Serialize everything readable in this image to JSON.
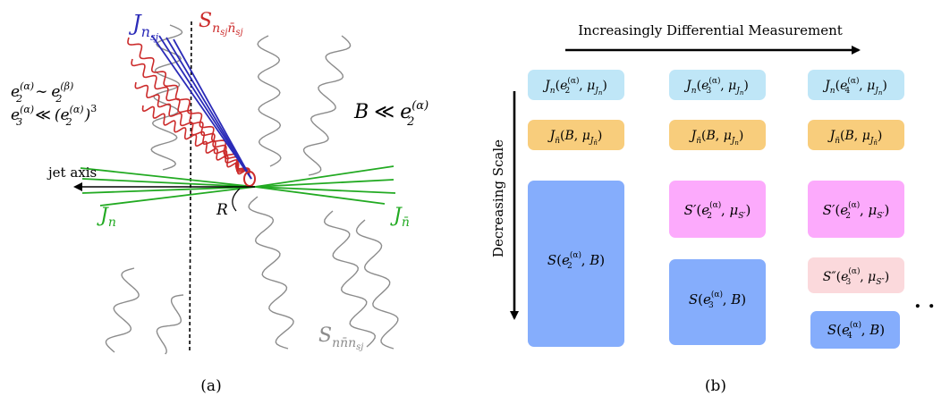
{
  "panel_a": {
    "caption": "(a)",
    "jet_axis_label": "jet axis",
    "collinear_subjet_label": {
      "base": "J",
      "sub": "n",
      "subsub": "sj"
    },
    "soft_collinear_label": {
      "base": "S",
      "sub": "n",
      "subsub": "sj",
      "sub2": "n̄",
      "subsub2": "sj"
    },
    "soft_global_label": {
      "base": "S",
      "sub": "nn̄n",
      "subsub": "sj"
    },
    "jet_n_label": {
      "base": "J",
      "sub": "n"
    },
    "jet_nbar_label": {
      "base": "J",
      "sub": "n̄"
    },
    "radius_label": "R",
    "relation_1": {
      "lhs": "e",
      "lhs_sub": "2",
      "lhs_sup": "(α)",
      "op": "∼",
      "rhs": "e",
      "rhs_sub": "2",
      "rhs_sup": "(β)"
    },
    "relation_2": {
      "lhs": "e",
      "lhs_sub": "3",
      "lhs_sup": "(α)",
      "op": "≪",
      "rhs": "(e",
      "rhs_sub": "2",
      "rhs_sup": "(α)",
      "tail": ")",
      "power": "3"
    },
    "relation_3": {
      "lhs": "B",
      "op": "≪",
      "rhs": "e",
      "rhs_sub": "2",
      "rhs_sup": "(α)"
    },
    "colors": {
      "collinear": "#2b2bb8",
      "soft_collinear": "#cc2b2b",
      "soft": "#8c8c8c",
      "jet": "#22aa22"
    }
  },
  "panel_b": {
    "caption": "(b)",
    "horizontal_axis_label": "Increasingly Differential Measurement",
    "vertical_axis_label": "Decreasing Scale",
    "ellipsis": ". .",
    "colors": {
      "jet": "#bfe6f7",
      "antijet": "#f8cd7c",
      "soft": "#85adfc",
      "softprime": "#fcaafc",
      "softdoubleprime": "#fbd9dc"
    },
    "columns": [
      {
        "jet": {
          "fn": "J",
          "fn_sub": "n",
          "arg": "e",
          "arg_sub": "2",
          "arg_sup": "(α)",
          "mu": "μ",
          "mu_sub": "J",
          "mu_subsub": "n"
        },
        "antijet": {
          "fn": "J",
          "fn_sub": "n̄",
          "arg": "B",
          "mu": "μ",
          "mu_sub": "J",
          "mu_subsub": "n̄"
        },
        "soft": {
          "fn": "S",
          "arg": "e",
          "arg_sub": "2",
          "arg_sup": "(α)",
          "second": "B"
        }
      },
      {
        "jet": {
          "fn": "J",
          "fn_sub": "n",
          "arg": "e",
          "arg_sub": "3",
          "arg_sup": "(α)",
          "mu": "μ",
          "mu_sub": "J",
          "mu_subsub": "n"
        },
        "antijet": {
          "fn": "J",
          "fn_sub": "n̄",
          "arg": "B",
          "mu": "μ",
          "mu_sub": "J",
          "mu_subsub": "n"
        },
        "softprime": {
          "fn": "S′",
          "arg": "e",
          "arg_sub": "2",
          "arg_sup": "(α)",
          "mu": "μ",
          "mu_sub": "S′"
        },
        "soft": {
          "fn": "S",
          "arg": "e",
          "arg_sub": "3",
          "arg_sup": "(α)",
          "second": "B"
        }
      },
      {
        "jet": {
          "fn": "J",
          "fn_sub": "n",
          "arg": "e",
          "arg_sub": "4",
          "arg_sup": "(α)",
          "mu": "μ",
          "mu_sub": "J",
          "mu_subsub": "n"
        },
        "antijet": {
          "fn": "J",
          "fn_sub": "n̄",
          "arg": "B",
          "mu": "μ",
          "mu_sub": "J",
          "mu_subsub": "n̄"
        },
        "softprime": {
          "fn": "S′",
          "arg": "e",
          "arg_sub": "2",
          "arg_sup": "(α)",
          "mu": "μ",
          "mu_sub": "S′"
        },
        "softdoubleprime": {
          "fn": "S″",
          "arg": "e",
          "arg_sub": "3",
          "arg_sup": "(α)",
          "mu": "μ",
          "mu_sub": "S″"
        },
        "soft": {
          "fn": "S",
          "arg": "e",
          "arg_sub": "4",
          "arg_sup": "(α)",
          "second": "B"
        }
      }
    ]
  }
}
